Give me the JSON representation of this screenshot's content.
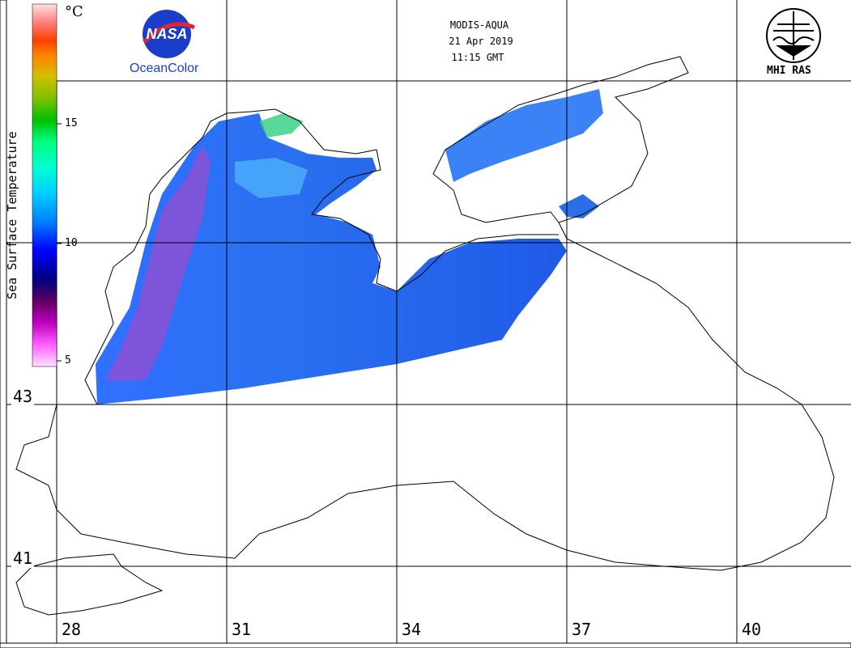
{
  "header": {
    "sensor": "MODIS-AQUA",
    "date": "21 Apr 2019",
    "time": "11:15 GMT"
  },
  "logos": {
    "nasa_mark": "NASA",
    "nasa_caption": "OceanColor",
    "mhi_caption": "MHI RAS"
  },
  "colorbar": {
    "title": "Sea Surface Temperature",
    "unit": "°C",
    "ticks": [
      "15",
      "10",
      "5"
    ],
    "colors": [
      "#ffe0ff",
      "#ff60ff",
      "#c000c0",
      "#600060",
      "#000080",
      "#0000ff",
      "#0080ff",
      "#00d0ff",
      "#00ffd0",
      "#00ff80",
      "#00c000",
      "#80c000",
      "#d0c000",
      "#ff8000",
      "#ff4000",
      "#ff8080",
      "#ffe0e0"
    ]
  },
  "axes": {
    "latitude_labels": [
      "43",
      "41"
    ],
    "longitude_labels": [
      "28",
      "31",
      "34",
      "37",
      "40"
    ]
  }
}
